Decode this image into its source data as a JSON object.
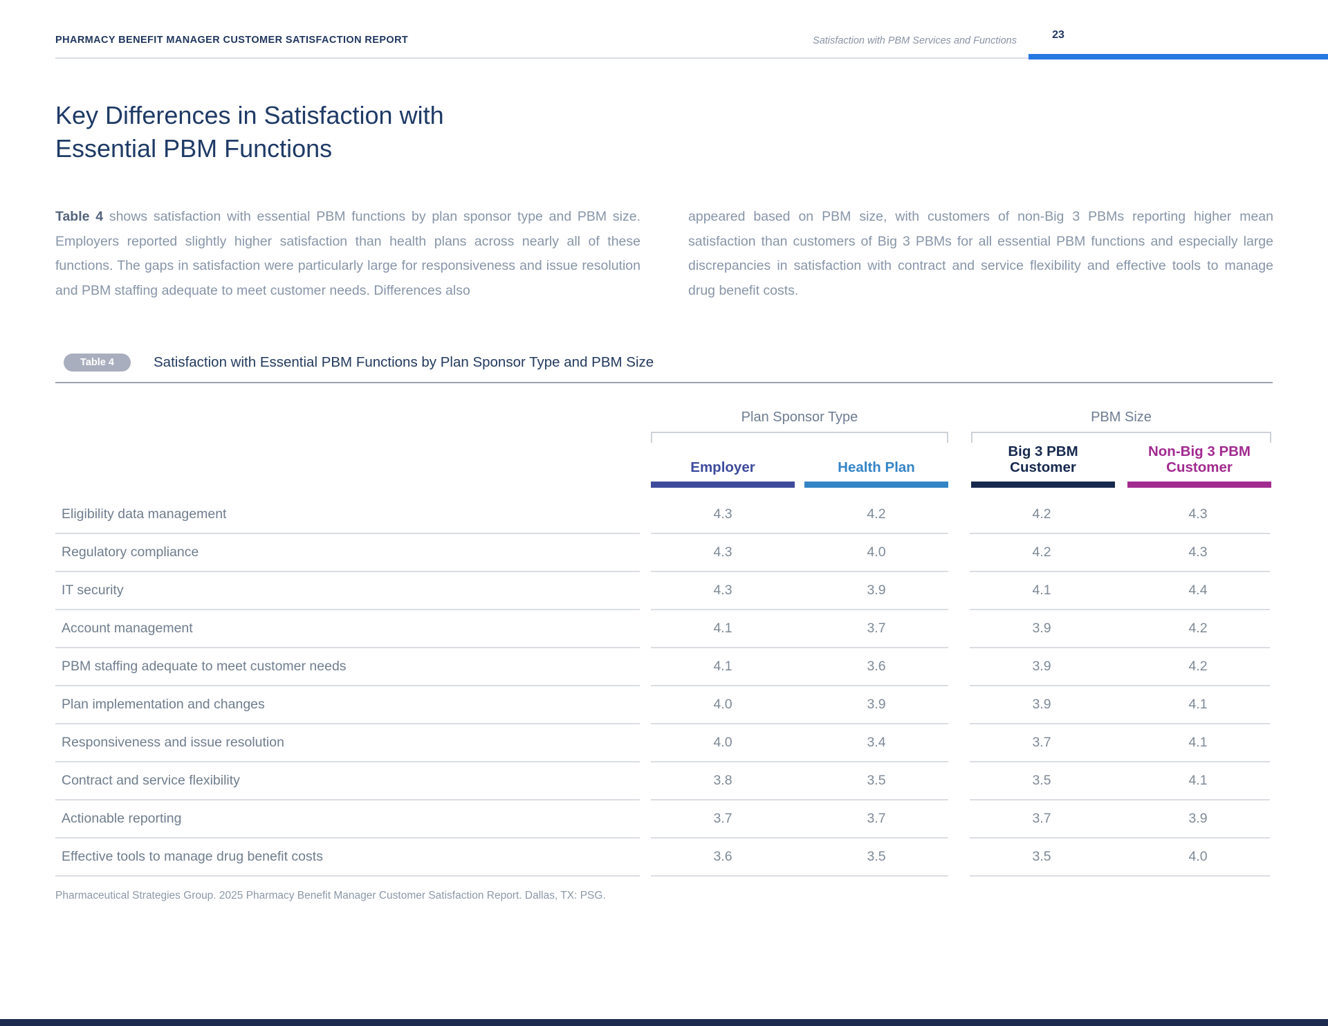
{
  "header": {
    "report_title": "PHARMACY BENEFIT MANAGER CUSTOMER SATISFACTION REPORT",
    "section_label": "Satisfaction with PBM Services and Functions",
    "page_number": "23"
  },
  "page_title": {
    "line1": "Key Differences in Satisfaction with",
    "line2": "Essential PBM Functions"
  },
  "intro": {
    "left_lead": "Table 4",
    "left_text": " shows satisfaction with essential PBM functions by plan sponsor type and PBM size. Employers reported slightly higher satisfaction than health plans across nearly all of these functions. The gaps in satisfaction were particularly large for responsiveness and issue resolution and PBM staffing adequate to meet customer needs. Differences also",
    "right_text": "appeared based on PBM size, with customers of non-Big 3 PBMs reporting higher mean satisfaction than customers of Big 3 PBMs for all essential PBM functions and especially large discrepancies in satisfaction with contract and service flexibility and effective tools to manage drug benefit costs."
  },
  "table": {
    "badge_label": "Table 4",
    "caption": "Satisfaction with Essential PBM Functions by Plan Sponsor Type and PBM Size",
    "column_groups": [
      {
        "label": "Plan Sponsor Type",
        "columns": [
          {
            "label": "Employer",
            "color": "#3e4b9d"
          },
          {
            "label": "Health Plan",
            "color": "#3584c6"
          }
        ]
      },
      {
        "label": "PBM Size",
        "columns": [
          {
            "label": "Big 3 PBM Customer",
            "color": "#17294e"
          },
          {
            "label": "Non-Big 3 PBM Customer",
            "color": "#a22b90"
          }
        ]
      }
    ],
    "rows": [
      {
        "label": "Eligibility data management",
        "values": [
          "4.3",
          "4.2",
          "4.2",
          "4.3"
        ]
      },
      {
        "label": "Regulatory compliance",
        "values": [
          "4.3",
          "4.0",
          "4.2",
          "4.3"
        ]
      },
      {
        "label": "IT security",
        "values": [
          "4.3",
          "3.9",
          "4.1",
          "4.4"
        ]
      },
      {
        "label": "Account management",
        "values": [
          "4.1",
          "3.7",
          "3.9",
          "4.2"
        ]
      },
      {
        "label": "PBM staffing adequate to meet customer needs",
        "values": [
          "4.1",
          "3.6",
          "3.9",
          "4.2"
        ]
      },
      {
        "label": "Plan implementation and changes",
        "values": [
          "4.0",
          "3.9",
          "3.9",
          "4.1"
        ]
      },
      {
        "label": "Responsiveness and issue resolution",
        "values": [
          "4.0",
          "3.4",
          "3.7",
          "4.1"
        ]
      },
      {
        "label": "Contract and service flexibility",
        "values": [
          "3.8",
          "3.5",
          "3.5",
          "4.1"
        ]
      },
      {
        "label": "Actionable reporting",
        "values": [
          "3.7",
          "3.7",
          "3.7",
          "3.9"
        ]
      },
      {
        "label": "Effective tools to manage drug benefit costs",
        "values": [
          "3.6",
          "3.5",
          "3.5",
          "4.0"
        ]
      }
    ],
    "source": "Pharmaceutical Strategies Group. 2025 Pharmacy Benefit Manager Customer Satisfaction Report. Dallas, TX: PSG."
  },
  "colors": {
    "accent_blue": "#2779e2",
    "navy": "#21375f",
    "footer_bar": "#1b2a4e"
  }
}
